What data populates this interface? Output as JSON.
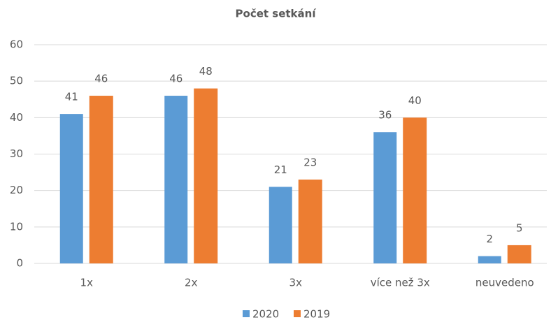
{
  "chart_data": {
    "type": "bar",
    "title": "Počet setkání",
    "categories": [
      "1x",
      "2x",
      "3x",
      "více než 3x",
      "neuvedeno"
    ],
    "series": [
      {
        "name": "2020",
        "color": "#5b9bd5",
        "values": [
          41,
          46,
          21,
          36,
          2
        ]
      },
      {
        "name": "2019",
        "color": "#ed7d31",
        "values": [
          46,
          48,
          23,
          40,
          5
        ]
      }
    ],
    "ylim": [
      0,
      60
    ],
    "yticks": [
      0,
      10,
      20,
      30,
      40,
      50,
      60
    ],
    "grid": true,
    "legend": "bottom"
  }
}
